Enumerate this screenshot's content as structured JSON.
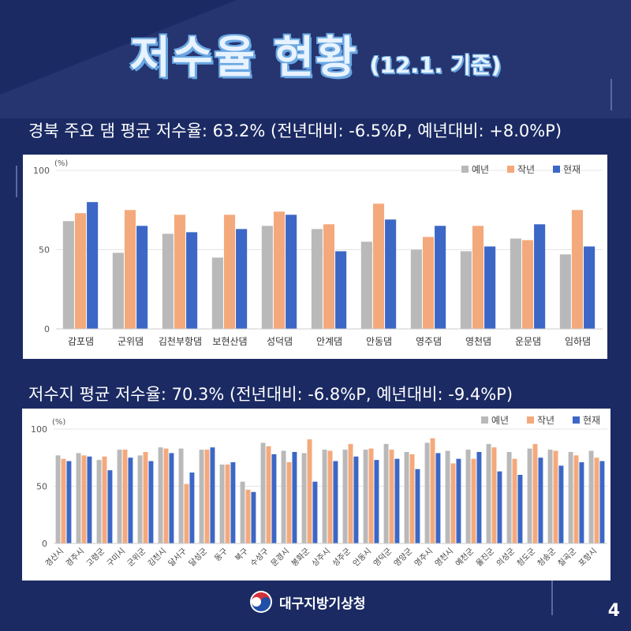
{
  "title": {
    "main": "저수율 현황",
    "sub": "(12.1. 기준)"
  },
  "dam_heading": "경북 주요 댐 평균 저수율: 63.2% (전년대비: -6.5%P, 예년대비: +8.0%P)",
  "reservoir_heading": "저수지 평균 저수율: 70.3% (전년대비: -6.8%P, 예년대비: -9.4%P)",
  "footer": {
    "org": "대구지방기상청"
  },
  "page_number": "4",
  "colors": {
    "normal": "#b9b9b9",
    "last_year": "#f4a97c",
    "current": "#3c67c6"
  },
  "chart_data": [
    {
      "type": "bar",
      "title": "",
      "unit_label": "(%)",
      "ylim": [
        0,
        100
      ],
      "yticks": [
        "0",
        "50",
        "100"
      ],
      "legend": [
        "예년",
        "작년",
        "현재"
      ],
      "legend_position": "top-right",
      "categories": [
        "감포댐",
        "군위댐",
        "김천부항댐",
        "보현산댐",
        "성덕댐",
        "안계댐",
        "안동댐",
        "영주댐",
        "영천댐",
        "운문댐",
        "임하댐"
      ],
      "series": [
        {
          "name": "예년",
          "values": [
            68,
            48,
            60,
            45,
            65,
            63,
            55,
            50,
            49,
            57,
            47
          ]
        },
        {
          "name": "작년",
          "values": [
            73,
            75,
            72,
            72,
            74,
            66,
            79,
            58,
            65,
            56,
            75
          ]
        },
        {
          "name": "현재",
          "values": [
            80,
            65,
            61,
            63,
            72,
            49,
            69,
            65,
            52,
            66,
            52
          ]
        }
      ]
    },
    {
      "type": "bar",
      "title": "",
      "unit_label": "(%)",
      "ylim": [
        0,
        100
      ],
      "yticks": [
        "0",
        "50",
        "100"
      ],
      "legend": [
        "예년",
        "작년",
        "현재"
      ],
      "legend_position": "top-right",
      "categories": [
        "경산시",
        "경주시",
        "고령군",
        "구미시",
        "군위군",
        "김천시",
        "달서구",
        "달성군",
        "동구",
        "북구",
        "수성구",
        "문경시",
        "봉화군",
        "상주시",
        "성주군",
        "안동시",
        "영덕군",
        "영양군",
        "영주시",
        "영천시",
        "예천군",
        "울진군",
        "의성군",
        "청도군",
        "청송군",
        "칠곡군",
        "포항시"
      ],
      "series": [
        {
          "name": "예년",
          "values": [
            77,
            79,
            73,
            82,
            77,
            84,
            83,
            82,
            69,
            54,
            88,
            81,
            79,
            82,
            82,
            82,
            87,
            80,
            88,
            81,
            82,
            87,
            80,
            83,
            82,
            80,
            81
          ]
        },
        {
          "name": "작년",
          "values": [
            74,
            77,
            76,
            82,
            80,
            83,
            52,
            82,
            69,
            47,
            85,
            71,
            91,
            81,
            87,
            83,
            82,
            78,
            92,
            70,
            74,
            84,
            74,
            87,
            81,
            77,
            75
          ]
        },
        {
          "name": "현재",
          "values": [
            72,
            76,
            64,
            75,
            72,
            79,
            62,
            84,
            71,
            45,
            78,
            80,
            54,
            72,
            76,
            73,
            74,
            65,
            79,
            74,
            80,
            63,
            60,
            75,
            68,
            71,
            72
          ]
        }
      ]
    }
  ]
}
